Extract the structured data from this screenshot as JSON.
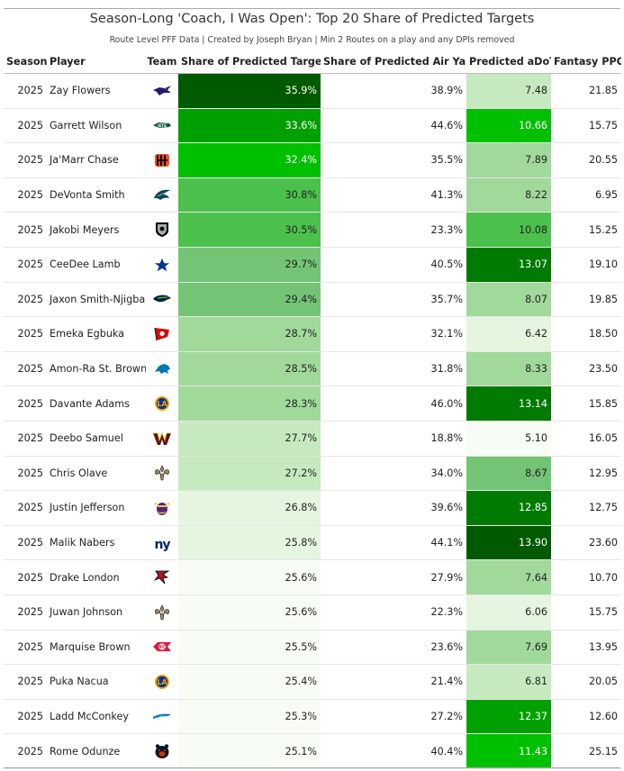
{
  "header": {
    "title": "Season-Long 'Coach, I Was Open': Top 20 Share of Predicted Targets",
    "subtitle": "Route Level PFF Data | Created by Joseph Bryan | Min 2 Routes on a play and any DPIs removed"
  },
  "columns": [
    "Season",
    "Player",
    "Team",
    "Share of Predicted Targets",
    "Share of Predicted Air Yards",
    "Predicted aDoT",
    "Fantasy PPG"
  ],
  "colors": {
    "scale": [
      "#f7fcf5",
      "#e5f5e0",
      "#c7e9c0",
      "#a1d99b",
      "#74c476",
      "#4cc04c",
      "#00c000",
      "#00a000",
      "#007a00",
      "#005a00"
    ],
    "text_dark": "#222222",
    "text_light": "#ffffff"
  },
  "chart_data": {
    "type": "table",
    "title": "Season-Long 'Coach, I Was Open': Top 20 Share of Predicted Targets",
    "subtitle": "Route Level PFF Data | Created by Joseph Bryan | Min 2 Routes on a play and any DPIs removed",
    "color_scaled_columns": [
      "Share of Predicted Targets",
      "Predicted aDoT"
    ],
    "rows": [
      {
        "season": "2025",
        "player": "Zay Flowers",
        "team": "BAL",
        "team_icon": "ravens-logo-icon",
        "spt": "35.9%",
        "spay": "38.9%",
        "adot": "7.48",
        "ppg": "21.85"
      },
      {
        "season": "2025",
        "player": "Garrett Wilson",
        "team": "NYJ",
        "team_icon": "jets-logo-icon",
        "spt": "33.6%",
        "spay": "44.6%",
        "adot": "10.66",
        "ppg": "15.75"
      },
      {
        "season": "2025",
        "player": "Ja'Marr Chase",
        "team": "CIN",
        "team_icon": "bengals-logo-icon",
        "spt": "32.4%",
        "spay": "35.5%",
        "adot": "7.89",
        "ppg": "20.55"
      },
      {
        "season": "2025",
        "player": "DeVonta Smith",
        "team": "PHI",
        "team_icon": "eagles-logo-icon",
        "spt": "30.8%",
        "spay": "41.3%",
        "adot": "8.22",
        "ppg": "6.95"
      },
      {
        "season": "2025",
        "player": "Jakobi Meyers",
        "team": "LV",
        "team_icon": "raiders-logo-icon",
        "spt": "30.5%",
        "spay": "23.3%",
        "adot": "10.08",
        "ppg": "15.25"
      },
      {
        "season": "2025",
        "player": "CeeDee Lamb",
        "team": "DAL",
        "team_icon": "cowboys-logo-icon",
        "spt": "29.7%",
        "spay": "40.5%",
        "adot": "13.07",
        "ppg": "19.10"
      },
      {
        "season": "2025",
        "player": "Jaxon Smith-Njigba",
        "team": "SEA",
        "team_icon": "seahawks-logo-icon",
        "spt": "29.4%",
        "spay": "35.7%",
        "adot": "8.07",
        "ppg": "19.85"
      },
      {
        "season": "2025",
        "player": "Emeka Egbuka",
        "team": "TB",
        "team_icon": "buccaneers-logo-icon",
        "spt": "28.7%",
        "spay": "32.1%",
        "adot": "6.42",
        "ppg": "18.50"
      },
      {
        "season": "2025",
        "player": "Amon-Ra St. Brown",
        "team": "DET",
        "team_icon": "lions-logo-icon",
        "spt": "28.5%",
        "spay": "31.8%",
        "adot": "8.33",
        "ppg": "23.50"
      },
      {
        "season": "2025",
        "player": "Davante Adams",
        "team": "LAR",
        "team_icon": "rams-logo-icon",
        "spt": "28.3%",
        "spay": "46.0%",
        "adot": "13.14",
        "ppg": "15.85"
      },
      {
        "season": "2025",
        "player": "Deebo Samuel",
        "team": "WAS",
        "team_icon": "commanders-logo-icon",
        "spt": "27.7%",
        "spay": "18.8%",
        "adot": "5.10",
        "ppg": "16.05"
      },
      {
        "season": "2025",
        "player": "Chris Olave",
        "team": "NO",
        "team_icon": "saints-logo-icon",
        "spt": "27.2%",
        "spay": "34.0%",
        "adot": "8.67",
        "ppg": "12.95"
      },
      {
        "season": "2025",
        "player": "Justin Jefferson",
        "team": "MIN",
        "team_icon": "vikings-logo-icon",
        "spt": "26.8%",
        "spay": "39.6%",
        "adot": "12.85",
        "ppg": "12.75"
      },
      {
        "season": "2025",
        "player": "Malik Nabers",
        "team": "NYG",
        "team_icon": "giants-logo-icon",
        "spt": "25.8%",
        "spay": "44.1%",
        "adot": "13.90",
        "ppg": "23.60"
      },
      {
        "season": "2025",
        "player": "Drake London",
        "team": "ATL",
        "team_icon": "falcons-logo-icon",
        "spt": "25.6%",
        "spay": "27.9%",
        "adot": "7.64",
        "ppg": "10.70"
      },
      {
        "season": "2025",
        "player": "Juwan Johnson",
        "team": "NO",
        "team_icon": "saints-logo-icon",
        "spt": "25.6%",
        "spay": "22.3%",
        "adot": "6.06",
        "ppg": "15.75"
      },
      {
        "season": "2025",
        "player": "Marquise Brown",
        "team": "KC",
        "team_icon": "chiefs-logo-icon",
        "spt": "25.5%",
        "spay": "23.6%",
        "adot": "7.69",
        "ppg": "13.95"
      },
      {
        "season": "2025",
        "player": "Puka Nacua",
        "team": "LAR",
        "team_icon": "rams-logo-icon",
        "spt": "25.4%",
        "spay": "21.4%",
        "adot": "6.81",
        "ppg": "20.05"
      },
      {
        "season": "2025",
        "player": "Ladd McConkey",
        "team": "LAC",
        "team_icon": "chargers-logo-icon",
        "spt": "25.3%",
        "spay": "27.2%",
        "adot": "12.37",
        "ppg": "12.60"
      },
      {
        "season": "2025",
        "player": "Rome Odunze",
        "team": "CHI",
        "team_icon": "bears-logo-icon",
        "spt": "25.1%",
        "spay": "40.4%",
        "adot": "11.43",
        "ppg": "25.15"
      }
    ]
  }
}
